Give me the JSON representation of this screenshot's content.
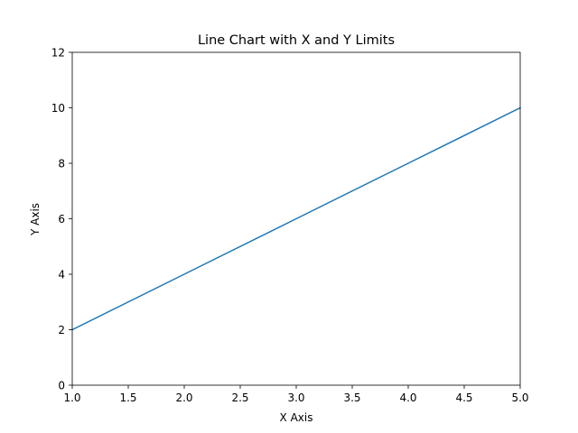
{
  "chart_data": {
    "type": "line",
    "title": "Line Chart with X and Y Limits",
    "xlabel": "X Axis",
    "ylabel": "Y Axis",
    "xlim": [
      1.0,
      5.0
    ],
    "ylim": [
      0,
      12
    ],
    "x_ticks": [
      "1.0",
      "1.5",
      "2.0",
      "2.5",
      "3.0",
      "3.5",
      "4.0",
      "4.5",
      "5.0"
    ],
    "y_ticks": [
      "0",
      "2",
      "4",
      "6",
      "8",
      "10",
      "12"
    ],
    "grid": false,
    "series": [
      {
        "x": [
          1,
          2,
          3,
          4,
          5
        ],
        "y": [
          2,
          4,
          6,
          8,
          10
        ],
        "color": "#1f77b4"
      }
    ]
  }
}
